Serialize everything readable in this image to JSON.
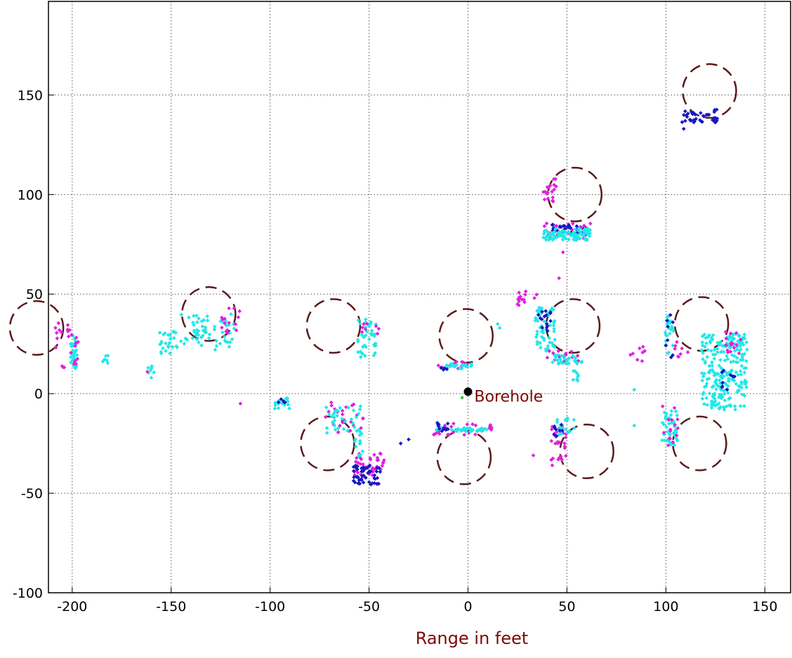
{
  "chart_data": {
    "type": "scatter",
    "title": "",
    "xlabel": "Range in feet",
    "ylabel": "",
    "xlim": [
      -212,
      163
    ],
    "ylim": [
      -100,
      197
    ],
    "xticks": [
      -200,
      -150,
      -100,
      -50,
      0,
      50,
      100,
      150
    ],
    "yticks": [
      -100,
      -50,
      0,
      50,
      100,
      150
    ],
    "xtick_labels": [
      "-200",
      "-150",
      "-100",
      "-50",
      "0",
      "50",
      "100",
      "150"
    ],
    "ytick_labels": [
      "-100",
      "-50",
      "0",
      "50",
      "100",
      "150"
    ],
    "grid": true,
    "colors": {
      "magenta": "#e020e0",
      "cyan": "#20e8e8",
      "blue": "#1818c0",
      "green": "#30d030",
      "circle": "#5a1a1a",
      "annotation": "#7a0a0a"
    },
    "annotation": {
      "text": "Borehole",
      "x": 0,
      "y": 1
    },
    "circles": [
      {
        "cx": -218,
        "cy": 33,
        "r": 13.5
      },
      {
        "cx": -131,
        "cy": 40,
        "r": 13.5
      },
      {
        "cx": -68,
        "cy": 34,
        "r": 13.5
      },
      {
        "cx": -1,
        "cy": 29,
        "r": 13.5
      },
      {
        "cx": 54,
        "cy": 100,
        "r": 13.5
      },
      {
        "cx": 122,
        "cy": 152,
        "r": 13.5
      },
      {
        "cx": 53,
        "cy": 34,
        "r": 13.5
      },
      {
        "cx": 118,
        "cy": 35,
        "r": 13.5
      },
      {
        "cx": -71,
        "cy": -25,
        "r": 13.5
      },
      {
        "cx": -2,
        "cy": -32,
        "r": 13.5
      },
      {
        "cx": 60,
        "cy": -29,
        "r": 13.5
      },
      {
        "cx": 117,
        "cy": -25,
        "r": 13.5
      }
    ],
    "clusters": [
      {
        "color": "blue",
        "x": [
          108,
          126
        ],
        "y": [
          136,
          143
        ],
        "n": 40
      },
      {
        "color": "magenta",
        "x": [
          38,
          45
        ],
        "y": [
          96,
          108
        ],
        "n": 20
      },
      {
        "color": "magenta",
        "x": [
          38,
          62
        ],
        "y": [
          78,
          86
        ],
        "n": 40
      },
      {
        "color": "blue",
        "x": [
          42,
          60
        ],
        "y": [
          80,
          85
        ],
        "n": 30
      },
      {
        "color": "cyan",
        "x": [
          38,
          62
        ],
        "y": [
          77,
          83
        ],
        "n": 90
      },
      {
        "color": "magenta",
        "x": [
          25,
          35
        ],
        "y": [
          44,
          53
        ],
        "n": 15
      },
      {
        "color": "cyan",
        "x": [
          34,
          44
        ],
        "y": [
          18,
          44
        ],
        "n": 60
      },
      {
        "color": "blue",
        "x": [
          35,
          42
        ],
        "y": [
          30,
          42
        ],
        "n": 15
      },
      {
        "color": "magenta",
        "x": [
          40,
          56
        ],
        "y": [
          15,
          22
        ],
        "n": 20
      },
      {
        "color": "cyan",
        "x": [
          42,
          58
        ],
        "y": [
          15,
          20
        ],
        "n": 30
      },
      {
        "color": "cyan",
        "x": [
          53,
          56
        ],
        "y": [
          6,
          12
        ],
        "n": 8
      },
      {
        "color": "magenta",
        "x": [
          82,
          90
        ],
        "y": [
          16,
          24
        ],
        "n": 8
      },
      {
        "color": "cyan",
        "x": [
          99,
          104
        ],
        "y": [
          20,
          40
        ],
        "n": 25
      },
      {
        "color": "blue",
        "x": [
          99,
          104
        ],
        "y": [
          18,
          40
        ],
        "n": 8
      },
      {
        "color": "magenta",
        "x": [
          102,
          112
        ],
        "y": [
          18,
          26
        ],
        "n": 8
      },
      {
        "color": "cyan",
        "x": [
          118,
          141
        ],
        "y": [
          -8,
          30
        ],
        "n": 240
      },
      {
        "color": "blue",
        "x": [
          128,
          136
        ],
        "y": [
          2,
          12
        ],
        "n": 10
      },
      {
        "color": "magenta",
        "x": [
          130,
          138
        ],
        "y": [
          20,
          32
        ],
        "n": 15
      },
      {
        "color": "cyan",
        "x": [
          98,
          106
        ],
        "y": [
          -26,
          -8
        ],
        "n": 45
      },
      {
        "color": "magenta",
        "x": [
          98,
          106
        ],
        "y": [
          -26,
          -6
        ],
        "n": 15
      },
      {
        "color": "magenta",
        "x": [
          42,
          50
        ],
        "y": [
          -36,
          -16
        ],
        "n": 30
      },
      {
        "color": "cyan",
        "x": [
          44,
          54
        ],
        "y": [
          -22,
          -12
        ],
        "n": 20
      },
      {
        "color": "blue",
        "x": [
          43,
          48
        ],
        "y": [
          -22,
          -14
        ],
        "n": 8
      },
      {
        "color": "magenta",
        "x": [
          -18,
          13
        ],
        "y": [
          -21,
          -15
        ],
        "n": 30
      },
      {
        "color": "cyan",
        "x": [
          -16,
          10
        ],
        "y": [
          -19,
          -17
        ],
        "n": 40
      },
      {
        "color": "blue",
        "x": [
          -17,
          -10
        ],
        "y": [
          -19,
          -14
        ],
        "n": 12
      },
      {
        "color": "magenta",
        "x": [
          -15,
          2
        ],
        "y": [
          12,
          16
        ],
        "n": 15
      },
      {
        "color": "cyan",
        "x": [
          -12,
          2
        ],
        "y": [
          12,
          15
        ],
        "n": 20
      },
      {
        "color": "blue",
        "x": [
          -14,
          -10
        ],
        "y": [
          12,
          14
        ],
        "n": 4
      },
      {
        "color": "magenta",
        "x": [
          -72,
          -52
        ],
        "y": [
          -20,
          -4
        ],
        "n": 25
      },
      {
        "color": "cyan",
        "x": [
          -72,
          -54
        ],
        "y": [
          -20,
          -6
        ],
        "n": 30
      },
      {
        "color": "magenta",
        "x": [
          -58,
          -40
        ],
        "y": [
          -42,
          -30
        ],
        "n": 40
      },
      {
        "color": "blue",
        "x": [
          -58,
          -44
        ],
        "y": [
          -46,
          -36
        ],
        "n": 50
      },
      {
        "color": "cyan",
        "x": [
          -58,
          -53
        ],
        "y": [
          -32,
          -18
        ],
        "n": 15
      },
      {
        "color": "cyan",
        "x": [
          -56,
          -46
        ],
        "y": [
          18,
          38
        ],
        "n": 40
      },
      {
        "color": "magenta",
        "x": [
          -55,
          -45
        ],
        "y": [
          30,
          38
        ],
        "n": 8
      },
      {
        "color": "cyan",
        "x": [
          -98,
          -90
        ],
        "y": [
          -8,
          -2
        ],
        "n": 15
      },
      {
        "color": "blue",
        "x": [
          -98,
          -92
        ],
        "y": [
          -6,
          -2
        ],
        "n": 5
      },
      {
        "color": "cyan",
        "x": [
          -156,
          -147
        ],
        "y": [
          20,
          32
        ],
        "n": 25
      },
      {
        "color": "cyan",
        "x": [
          -145,
          -118
        ],
        "y": [
          22,
          40
        ],
        "n": 60
      },
      {
        "color": "magenta",
        "x": [
          -125,
          -115
        ],
        "y": [
          30,
          43
        ],
        "n": 15
      },
      {
        "color": "cyan",
        "x": [
          -201,
          -197
        ],
        "y": [
          12,
          30
        ],
        "n": 35
      },
      {
        "color": "magenta",
        "x": [
          -209,
          -197
        ],
        "y": [
          12,
          36
        ],
        "n": 25
      },
      {
        "color": "cyan",
        "x": [
          -185,
          -178
        ],
        "y": [
          15,
          20
        ],
        "n": 6
      },
      {
        "color": "cyan",
        "x": [
          -162,
          -158
        ],
        "y": [
          8,
          14
        ],
        "n": 6
      }
    ],
    "points": [
      {
        "color": "blue",
        "x": 109,
        "y": 133
      },
      {
        "color": "magenta",
        "x": 48,
        "y": 71
      },
      {
        "color": "magenta",
        "x": 46,
        "y": 58
      },
      {
        "color": "cyan",
        "x": 15,
        "y": 35
      },
      {
        "color": "cyan",
        "x": 16,
        "y": 33
      },
      {
        "color": "cyan",
        "x": 84,
        "y": 2
      },
      {
        "color": "cyan",
        "x": 84,
        "y": -16
      },
      {
        "color": "magenta",
        "x": 33,
        "y": -31
      },
      {
        "color": "blue",
        "x": -34,
        "y": -25
      },
      {
        "color": "blue",
        "x": -30,
        "y": -23
      },
      {
        "color": "magenta",
        "x": -115,
        "y": -5
      },
      {
        "color": "green",
        "x": -3,
        "y": -2
      },
      {
        "color": "cyan",
        "x": -160,
        "y": 8
      },
      {
        "color": "magenta",
        "x": -162,
        "y": 11
      }
    ]
  }
}
